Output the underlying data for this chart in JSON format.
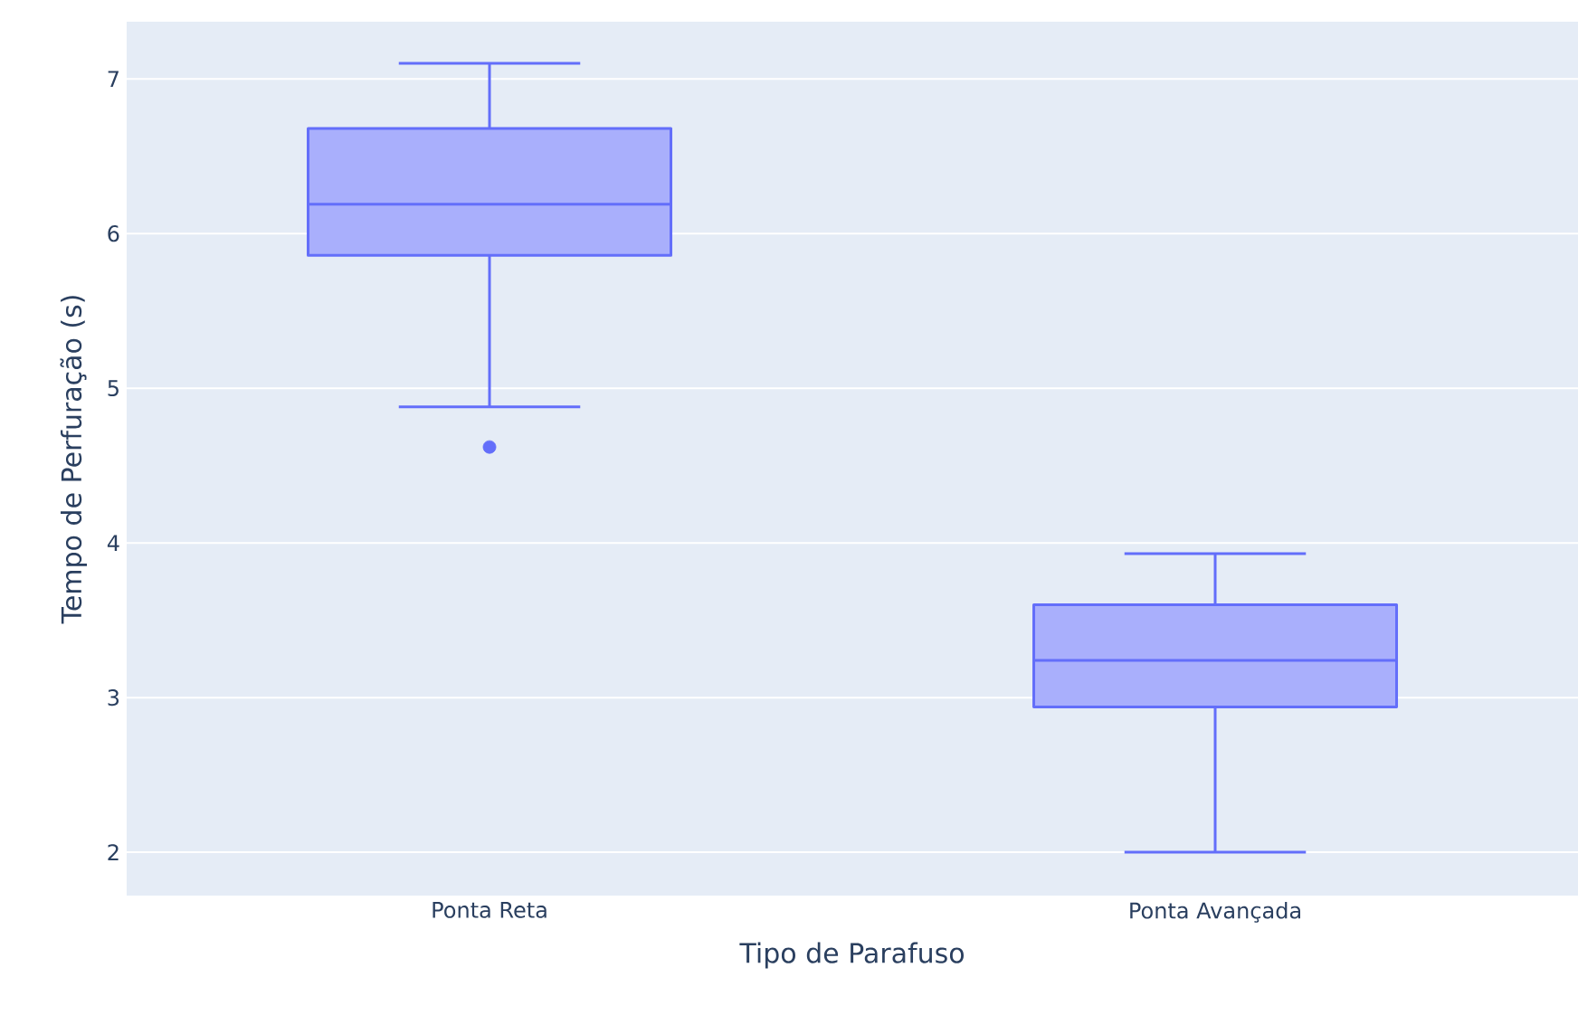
{
  "chart_data": {
    "type": "box",
    "xlabel": "Tipo de Parafuso",
    "ylabel": "Tempo de Perfuração (s)",
    "categories": [
      "Ponta Reta",
      "Ponta Avançada"
    ],
    "series": [
      {
        "color": "#636efa",
        "boxes": [
          {
            "low": 4.88,
            "q1": 5.86,
            "median": 6.19,
            "q3": 6.68,
            "high": 7.1,
            "outliers": [
              4.62
            ]
          },
          {
            "low": 2.0,
            "q1": 2.94,
            "median": 3.24,
            "q3": 3.6,
            "high": 3.93
          }
        ]
      }
    ],
    "ylim": [
      1.72,
      7.37
    ],
    "yticks": [
      2,
      3,
      4,
      5,
      6,
      7
    ],
    "grid": "y"
  }
}
